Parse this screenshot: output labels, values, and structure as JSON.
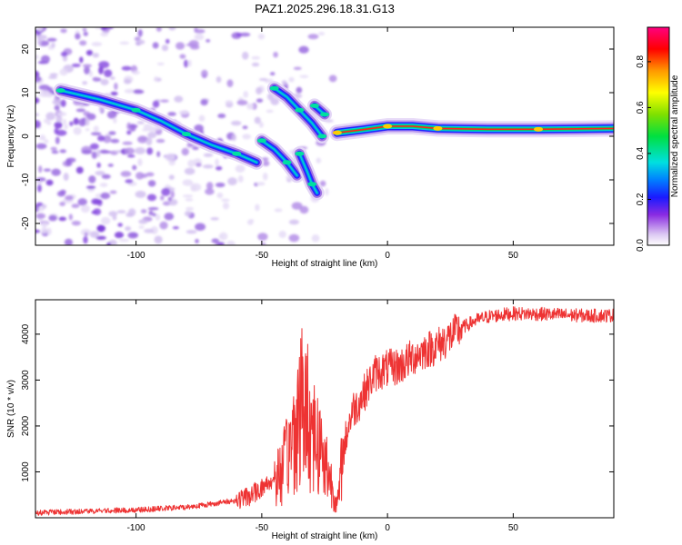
{
  "chart_data": [
    {
      "type": "heatmap",
      "title": "PAZ1.2025.296.18.31.G13",
      "xlabel": "Height of straight line (km)",
      "ylabel": "Frequency (Hz)",
      "xlim": [
        -140,
        90
      ],
      "ylim": [
        -25,
        25
      ],
      "xticks": [
        -100,
        -50,
        0,
        50
      ],
      "yticks": [
        -20,
        -10,
        0,
        10,
        20
      ],
      "colorbar": {
        "label": "Normalized spectral amplitude",
        "range": [
          0.0,
          0.95
        ],
        "ticks": [
          0.0,
          0.2,
          0.4,
          0.6,
          0.8
        ]
      },
      "ridges": [
        {
          "name": "main-ridge",
          "points": [
            [
              -130,
              10.5
            ],
            [
              -115,
              8.5
            ],
            [
              -100,
              6
            ],
            [
              -90,
              3.5
            ],
            [
              -80,
              0.5
            ],
            [
              -70,
              -2
            ],
            [
              -60,
              -4
            ],
            [
              -52,
              -6
            ]
          ]
        },
        {
          "name": "secondary-ridge",
          "points": [
            [
              -50,
              -1
            ],
            [
              -45,
              -3
            ],
            [
              -40,
              -6
            ],
            [
              -36,
              -9
            ]
          ]
        },
        {
          "name": "upper-branch",
          "points": [
            [
              -45,
              11
            ],
            [
              -40,
              9
            ],
            [
              -35,
              6
            ],
            [
              -30,
              3
            ],
            [
              -26,
              0
            ]
          ]
        },
        {
          "name": "lower-branch",
          "points": [
            [
              -35,
              -4
            ],
            [
              -32,
              -8
            ],
            [
              -30,
              -11
            ],
            [
              -28,
              -13
            ]
          ]
        },
        {
          "name": "short-burst",
          "points": [
            [
              -29,
              7
            ],
            [
              -27,
              6
            ],
            [
              -25,
              5
            ]
          ]
        },
        {
          "name": "steady-tone",
          "points": [
            [
              -20,
              0.8
            ],
            [
              -10,
              1.5
            ],
            [
              0,
              2.3
            ],
            [
              10,
              2.3
            ],
            [
              20,
              1.8
            ],
            [
              40,
              1.6
            ],
            [
              60,
              1.6
            ],
            [
              90,
              1.8
            ]
          ]
        }
      ]
    },
    {
      "type": "line",
      "title": "",
      "xlabel": "Height of straight line (km)",
      "ylabel": "SNR (10 * v/v)",
      "xlim": [
        -140,
        90
      ],
      "ylim": [
        0,
        4750
      ],
      "xticks": [
        -100,
        -50,
        0,
        50
      ],
      "yticks": [
        1000,
        2000,
        3000,
        4000
      ],
      "series": [
        {
          "name": "SNR",
          "color": "#ee3333",
          "x": [
            -140,
            -120,
            -100,
            -80,
            -70,
            -60,
            -55,
            -50,
            -45,
            -42,
            -40,
            -38,
            -36,
            -34,
            -32,
            -30,
            -28,
            -26,
            -24,
            -22,
            -20,
            -19,
            -18,
            -16,
            -14,
            -12,
            -10,
            -8,
            -5,
            0,
            5,
            10,
            15,
            20,
            25,
            30,
            35,
            40,
            45,
            50,
            60,
            70,
            80,
            90
          ],
          "y": [
            110,
            140,
            170,
            230,
            300,
            380,
            470,
            650,
            850,
            1000,
            1300,
            1700,
            2100,
            2500,
            2300,
            2000,
            1700,
            1400,
            1100,
            700,
            250,
            650,
            1300,
            1900,
            2350,
            2450,
            2650,
            2850,
            3150,
            3250,
            3300,
            3500,
            3650,
            3750,
            3950,
            4150,
            4300,
            4380,
            4420,
            4450,
            4440,
            4420,
            4400,
            4410
          ]
        }
      ]
    }
  ]
}
